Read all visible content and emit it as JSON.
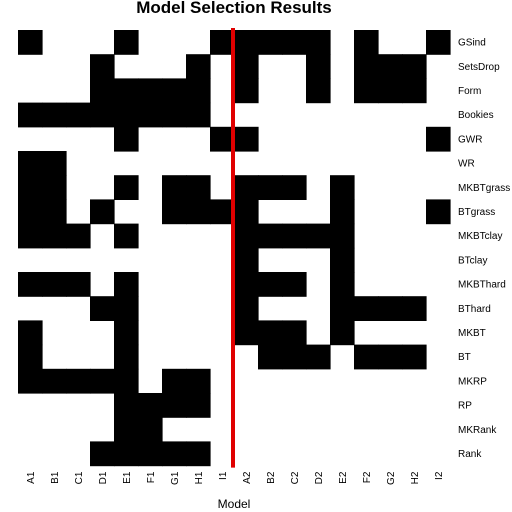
{
  "chart_data": {
    "type": "heatmap",
    "title": "Model Selection Results",
    "xlabel": "Model",
    "ylabel": "",
    "x": [
      "A1",
      "B1",
      "C1",
      "D1",
      "E1",
      "F1",
      "G1",
      "H1",
      "I1",
      "A2",
      "B2",
      "C2",
      "D2",
      "E2",
      "F2",
      "G2",
      "H2",
      "I2"
    ],
    "y": [
      "GSind",
      "SetsDrop",
      "Form",
      "Bookies",
      "GWR",
      "WR",
      "MKBTgrass",
      "BTgrass",
      "MKBTclay",
      "BTclay",
      "MKBThard",
      "BThard",
      "MKBT",
      "BT",
      "MKRP",
      "RP",
      "MKRank",
      "Rank"
    ],
    "values": [
      [
        1,
        0,
        0,
        0,
        1,
        0,
        0,
        0,
        1,
        1,
        1,
        1,
        1,
        0,
        1,
        0,
        0,
        1
      ],
      [
        0,
        0,
        0,
        1,
        0,
        0,
        0,
        1,
        0,
        1,
        0,
        0,
        1,
        0,
        1,
        1,
        1,
        0
      ],
      [
        0,
        0,
        0,
        1,
        1,
        1,
        1,
        1,
        0,
        1,
        0,
        0,
        1,
        0,
        1,
        1,
        1,
        0
      ],
      [
        1,
        1,
        1,
        1,
        1,
        1,
        1,
        1,
        0,
        0,
        0,
        0,
        0,
        0,
        0,
        0,
        0,
        0
      ],
      [
        0,
        0,
        0,
        0,
        1,
        0,
        0,
        0,
        1,
        1,
        0,
        0,
        0,
        0,
        0,
        0,
        0,
        1
      ],
      [
        1,
        1,
        0,
        0,
        0,
        0,
        0,
        0,
        0,
        0,
        0,
        0,
        0,
        0,
        0,
        0,
        0,
        0
      ],
      [
        1,
        1,
        0,
        0,
        1,
        0,
        1,
        1,
        0,
        1,
        1,
        1,
        0,
        1,
        0,
        0,
        0,
        0
      ],
      [
        1,
        1,
        0,
        1,
        0,
        0,
        1,
        1,
        1,
        1,
        0,
        0,
        0,
        1,
        0,
        0,
        0,
        1
      ],
      [
        1,
        1,
        1,
        0,
        1,
        0,
        0,
        0,
        0,
        1,
        1,
        1,
        1,
        1,
        0,
        0,
        0,
        0
      ],
      [
        0,
        0,
        0,
        0,
        0,
        0,
        0,
        0,
        0,
        1,
        0,
        0,
        0,
        1,
        0,
        0,
        0,
        0
      ],
      [
        1,
        1,
        1,
        0,
        1,
        0,
        0,
        0,
        0,
        1,
        1,
        1,
        0,
        1,
        0,
        0,
        0,
        0
      ],
      [
        0,
        0,
        0,
        1,
        1,
        0,
        0,
        0,
        0,
        1,
        0,
        0,
        0,
        1,
        1,
        1,
        1,
        0
      ],
      [
        1,
        0,
        0,
        0,
        1,
        0,
        0,
        0,
        0,
        1,
        1,
        1,
        0,
        1,
        0,
        0,
        0,
        0
      ],
      [
        1,
        0,
        0,
        0,
        1,
        0,
        0,
        0,
        0,
        0,
        1,
        1,
        1,
        0,
        1,
        1,
        1,
        0
      ],
      [
        1,
        1,
        1,
        1,
        1,
        0,
        1,
        1,
        0,
        0,
        0,
        0,
        0,
        0,
        0,
        0,
        0,
        0
      ],
      [
        0,
        0,
        0,
        0,
        1,
        1,
        1,
        1,
        0,
        0,
        0,
        0,
        0,
        0,
        0,
        0,
        0,
        0
      ],
      [
        0,
        0,
        0,
        0,
        1,
        1,
        0,
        0,
        0,
        0,
        0,
        0,
        0,
        0,
        0,
        0,
        0,
        0
      ],
      [
        0,
        0,
        0,
        1,
        1,
        1,
        1,
        1,
        0,
        0,
        0,
        0,
        0,
        0,
        0,
        0,
        0,
        0
      ]
    ],
    "colors": {
      "selected": "#000000",
      "not_selected": "#ffffff",
      "divider": "#e00000"
    },
    "divider_between": [
      "I1",
      "A2"
    ],
    "grid": false,
    "legend": "none"
  }
}
